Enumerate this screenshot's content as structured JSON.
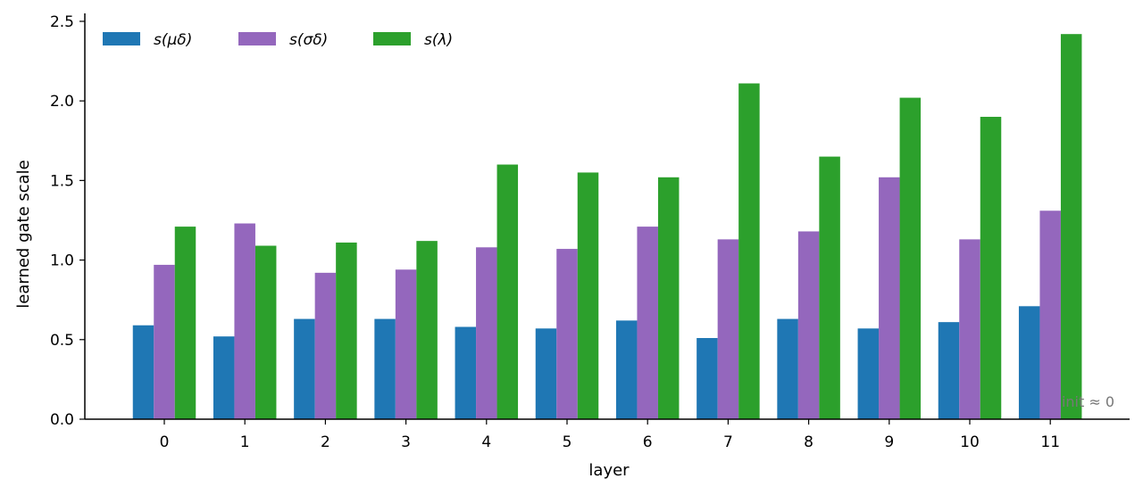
{
  "chart_data": {
    "type": "bar",
    "title": "",
    "xlabel": "layer",
    "ylabel": "learned gate scale",
    "categories": [
      "0",
      "1",
      "2",
      "3",
      "4",
      "5",
      "6",
      "7",
      "8",
      "9",
      "10",
      "11"
    ],
    "ylim": [
      0,
      2.55
    ],
    "yticks": [
      "0.0",
      "0.5",
      "1.0",
      "1.5",
      "2.0",
      "2.5"
    ],
    "grid": false,
    "legend_position": "top-left",
    "series": [
      {
        "name": "s(μδ)",
        "color": "#1f77b4",
        "values": [
          0.59,
          0.52,
          0.63,
          0.63,
          0.58,
          0.57,
          0.62,
          0.51,
          0.63,
          0.57,
          0.61,
          0.71
        ]
      },
      {
        "name": "s(σδ)",
        "color": "#9467bd",
        "values": [
          0.97,
          1.23,
          0.92,
          0.94,
          1.08,
          1.07,
          1.21,
          1.13,
          1.18,
          1.52,
          1.13,
          1.31
        ]
      },
      {
        "name": "s(λ)",
        "color": "#2ca02c",
        "values": [
          1.21,
          1.09,
          1.11,
          1.12,
          1.6,
          1.55,
          1.52,
          2.11,
          1.65,
          2.02,
          1.9,
          2.42
        ]
      }
    ],
    "annotation": "init ≈ 0"
  }
}
